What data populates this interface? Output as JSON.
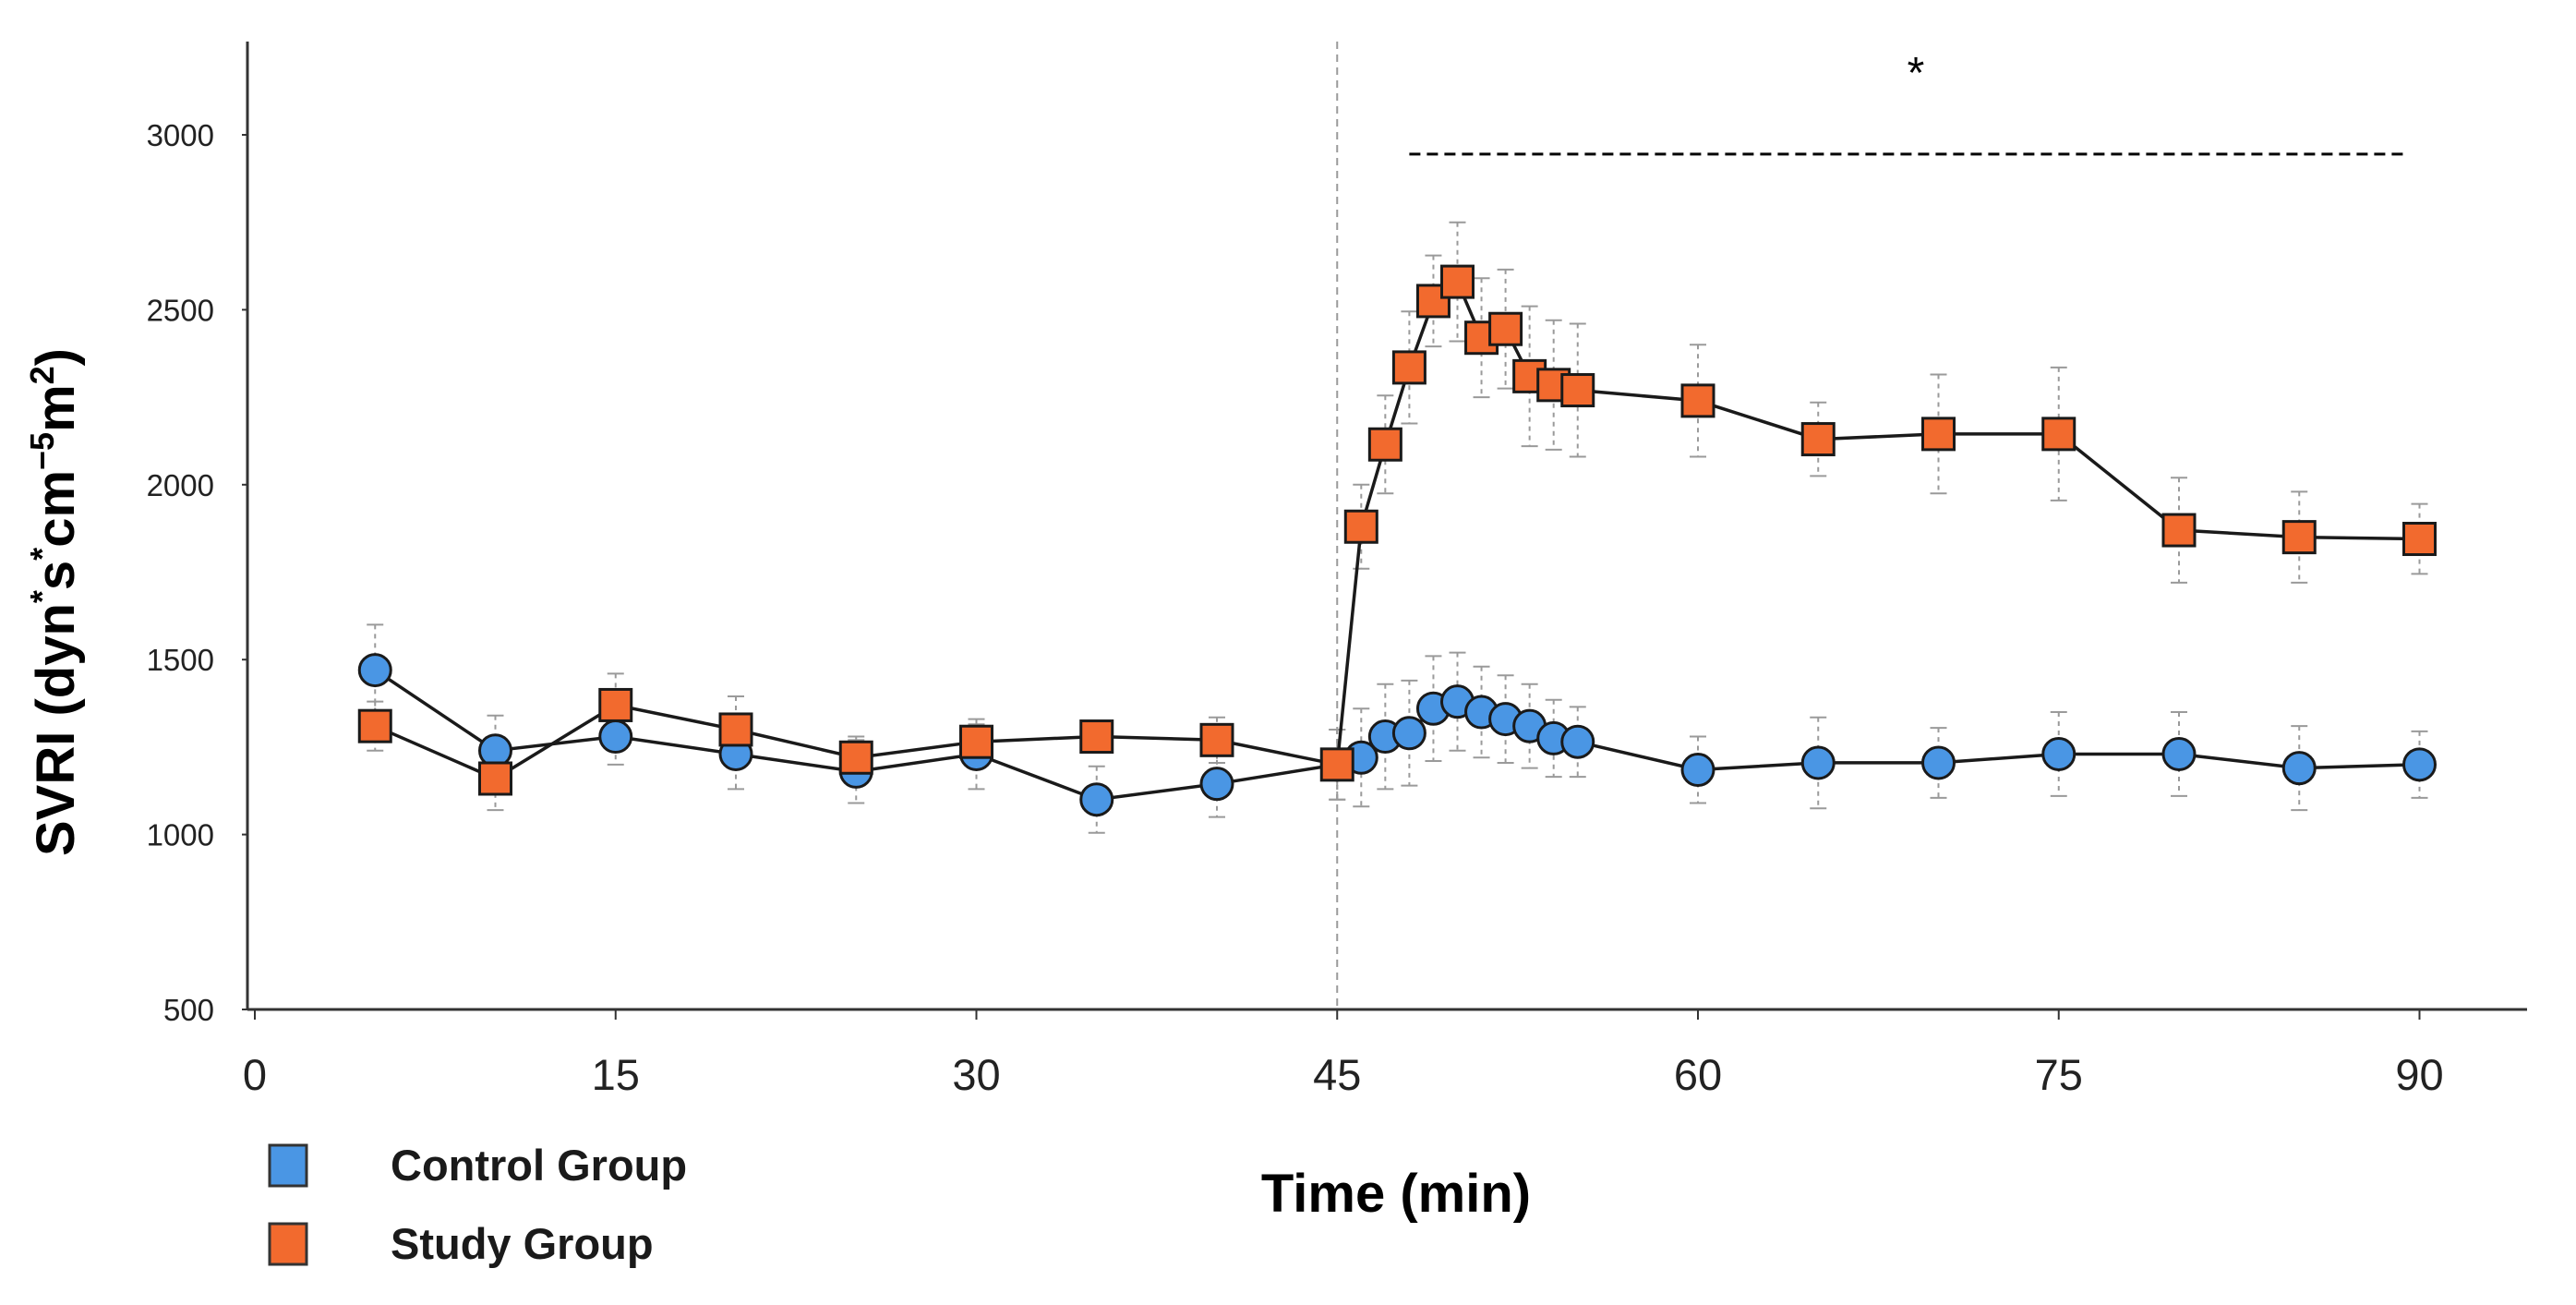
{
  "chart_data": {
    "type": "line",
    "title": "",
    "xlabel": "Time (min)",
    "ylabel_parts": {
      "main": "SVRI (dyn",
      "sup1": "*",
      "s": "s",
      "sup2": "*",
      "cm": "cm",
      "sup3": "−5",
      "m": "m",
      "sup4": "2",
      "close": ")"
    },
    "xlim": [
      0,
      95
    ],
    "ylim": [
      500,
      3250
    ],
    "x_ticks": [
      0,
      15,
      30,
      45,
      60,
      75,
      90
    ],
    "x_tick_labels": [
      "0",
      "15",
      "30",
      "45",
      "60",
      "75",
      "90"
    ],
    "y_ticks": [
      500,
      1000,
      1500,
      2000,
      2500,
      3000
    ],
    "y_tick_labels": [
      "500",
      "1000",
      "1500",
      "2000",
      "2500",
      "3000"
    ],
    "vertical_reference_x": 45,
    "significance": {
      "label": "*",
      "x_start": 48,
      "x_end": 89.5,
      "y": 2945
    },
    "series": [
      {
        "name": "Control Group",
        "color": "#4a96e4",
        "marker": "circle",
        "points": [
          {
            "x": 5,
            "y": 1470,
            "err": 130
          },
          {
            "x": 10,
            "y": 1240,
            "err": 100
          },
          {
            "x": 15,
            "y": 1280,
            "err": 80
          },
          {
            "x": 20,
            "y": 1230,
            "err": 100
          },
          {
            "x": 25,
            "y": 1180,
            "err": 90
          },
          {
            "x": 30,
            "y": 1230,
            "err": 100
          },
          {
            "x": 35,
            "y": 1100,
            "err": 95
          },
          {
            "x": 40,
            "y": 1145,
            "err": 95
          },
          {
            "x": 45,
            "y": 1200,
            "err": 100
          },
          {
            "x": 46,
            "y": 1220,
            "err": 140
          },
          {
            "x": 47,
            "y": 1280,
            "err": 150
          },
          {
            "x": 48,
            "y": 1290,
            "err": 150
          },
          {
            "x": 49,
            "y": 1360,
            "err": 150
          },
          {
            "x": 50,
            "y": 1380,
            "err": 140
          },
          {
            "x": 51,
            "y": 1350,
            "err": 130
          },
          {
            "x": 52,
            "y": 1330,
            "err": 125
          },
          {
            "x": 53,
            "y": 1310,
            "err": 120
          },
          {
            "x": 54,
            "y": 1275,
            "err": 110
          },
          {
            "x": 55,
            "y": 1265,
            "err": 100
          },
          {
            "x": 60,
            "y": 1185,
            "err": 95
          },
          {
            "x": 65,
            "y": 1205,
            "err": 130
          },
          {
            "x": 70,
            "y": 1205,
            "err": 100
          },
          {
            "x": 75,
            "y": 1230,
            "err": 120
          },
          {
            "x": 80,
            "y": 1230,
            "err": 120
          },
          {
            "x": 85,
            "y": 1190,
            "err": 120
          },
          {
            "x": 90,
            "y": 1200,
            "err": 95
          }
        ]
      },
      {
        "name": "Study Group",
        "color": "#f26a2e",
        "marker": "square",
        "points": [
          {
            "x": 5,
            "y": 1310,
            "err": 70
          },
          {
            "x": 10,
            "y": 1160,
            "err": 90
          },
          {
            "x": 15,
            "y": 1370,
            "err": 90
          },
          {
            "x": 20,
            "y": 1300,
            "err": 95
          },
          {
            "x": 25,
            "y": 1220,
            "err": 60
          },
          {
            "x": 30,
            "y": 1265,
            "err": 50
          },
          {
            "x": 35,
            "y": 1280,
            "err": 45
          },
          {
            "x": 40,
            "y": 1270,
            "err": 65
          },
          {
            "x": 45,
            "y": 1200,
            "err": 100
          },
          {
            "x": 46,
            "y": 1880,
            "err": 120
          },
          {
            "x": 47,
            "y": 2115,
            "err": 140
          },
          {
            "x": 48,
            "y": 2335,
            "err": 160
          },
          {
            "x": 49,
            "y": 2525,
            "err": 130
          },
          {
            "x": 50,
            "y": 2580,
            "err": 170
          },
          {
            "x": 51,
            "y": 2420,
            "err": 170
          },
          {
            "x": 52,
            "y": 2445,
            "err": 170
          },
          {
            "x": 53,
            "y": 2310,
            "err": 200
          },
          {
            "x": 54,
            "y": 2285,
            "err": 185
          },
          {
            "x": 55,
            "y": 2270,
            "err": 190
          },
          {
            "x": 60,
            "y": 2240,
            "err": 160
          },
          {
            "x": 65,
            "y": 2130,
            "err": 105
          },
          {
            "x": 70,
            "y": 2145,
            "err": 170
          },
          {
            "x": 75,
            "y": 2145,
            "err": 190
          },
          {
            "x": 80,
            "y": 1870,
            "err": 150
          },
          {
            "x": 85,
            "y": 1850,
            "err": 130
          },
          {
            "x": 90,
            "y": 1845,
            "err": 100
          }
        ]
      }
    ]
  }
}
